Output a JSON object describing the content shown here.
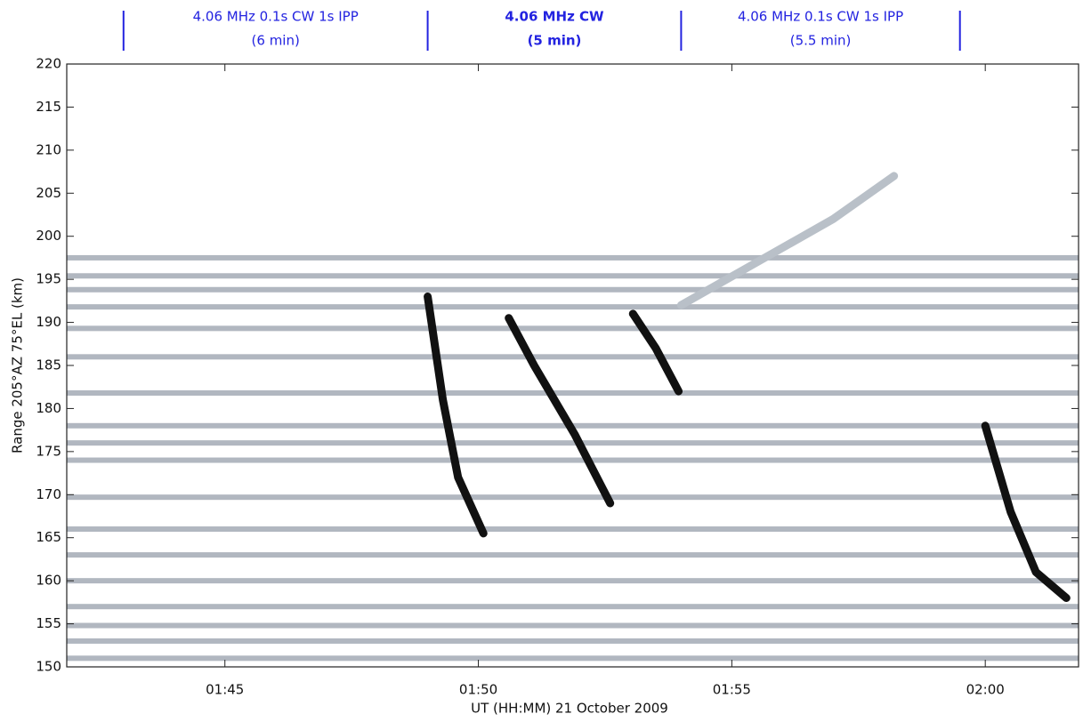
{
  "chart_data": {
    "type": "rti",
    "x_label": "UT (HH:MM) 21 October 2009",
    "y_label": "Range 205°AZ 75°EL (km)",
    "xlim": [
      101.88,
      121.84
    ],
    "xticks": [
      {
        "value": 105,
        "label": "01:45"
      },
      {
        "value": 110,
        "label": "01:50"
      },
      {
        "value": 115,
        "label": "01:55"
      },
      {
        "value": 120,
        "label": "02:00"
      }
    ],
    "ylim": [
      150,
      220
    ],
    "yticks": [
      150,
      155,
      160,
      165,
      170,
      175,
      180,
      185,
      190,
      195,
      200,
      205,
      210,
      215,
      220
    ],
    "segments": [
      {
        "start": 103,
        "end": 109,
        "label": "4.06 MHz 0.1s CW 1s IPP",
        "duration": "(6 min)"
      },
      {
        "start": 109,
        "end": 114,
        "label": "4.06 MHz CW",
        "duration": "(5 min)"
      },
      {
        "start": 114,
        "end": 119.5,
        "label": "4.06 MHz 0.1s CW 1s IPP",
        "duration": "(5.5 min)"
      }
    ],
    "bands": [
      151,
      153,
      154.8,
      157,
      160,
      163,
      166,
      169.7,
      174,
      176,
      178,
      181.8,
      186,
      189.3,
      191.8,
      193.8,
      195.4,
      197.5
    ],
    "band_color": "#7d8796",
    "traces": [
      {
        "color": "#111111",
        "x": [
          109,
          109.3,
          109.6,
          110.1
        ],
        "y": [
          193,
          181,
          172,
          165.5
        ]
      },
      {
        "color": "#111111",
        "x": [
          110.6,
          111.1,
          111.9,
          112.6
        ],
        "y": [
          190.5,
          185,
          177,
          169
        ]
      },
      {
        "color": "#111111",
        "x": [
          113.05,
          113.5,
          113.95
        ],
        "y": [
          191,
          187,
          182
        ]
      },
      {
        "color": "#111111",
        "x": [
          120,
          120.5,
          121,
          121.6
        ],
        "y": [
          178,
          168,
          161,
          158
        ]
      },
      {
        "color": "#b9c0c8",
        "x": [
          114,
          115.5,
          117,
          118.2
        ],
        "y": [
          192,
          197,
          202,
          207
        ]
      }
    ]
  }
}
